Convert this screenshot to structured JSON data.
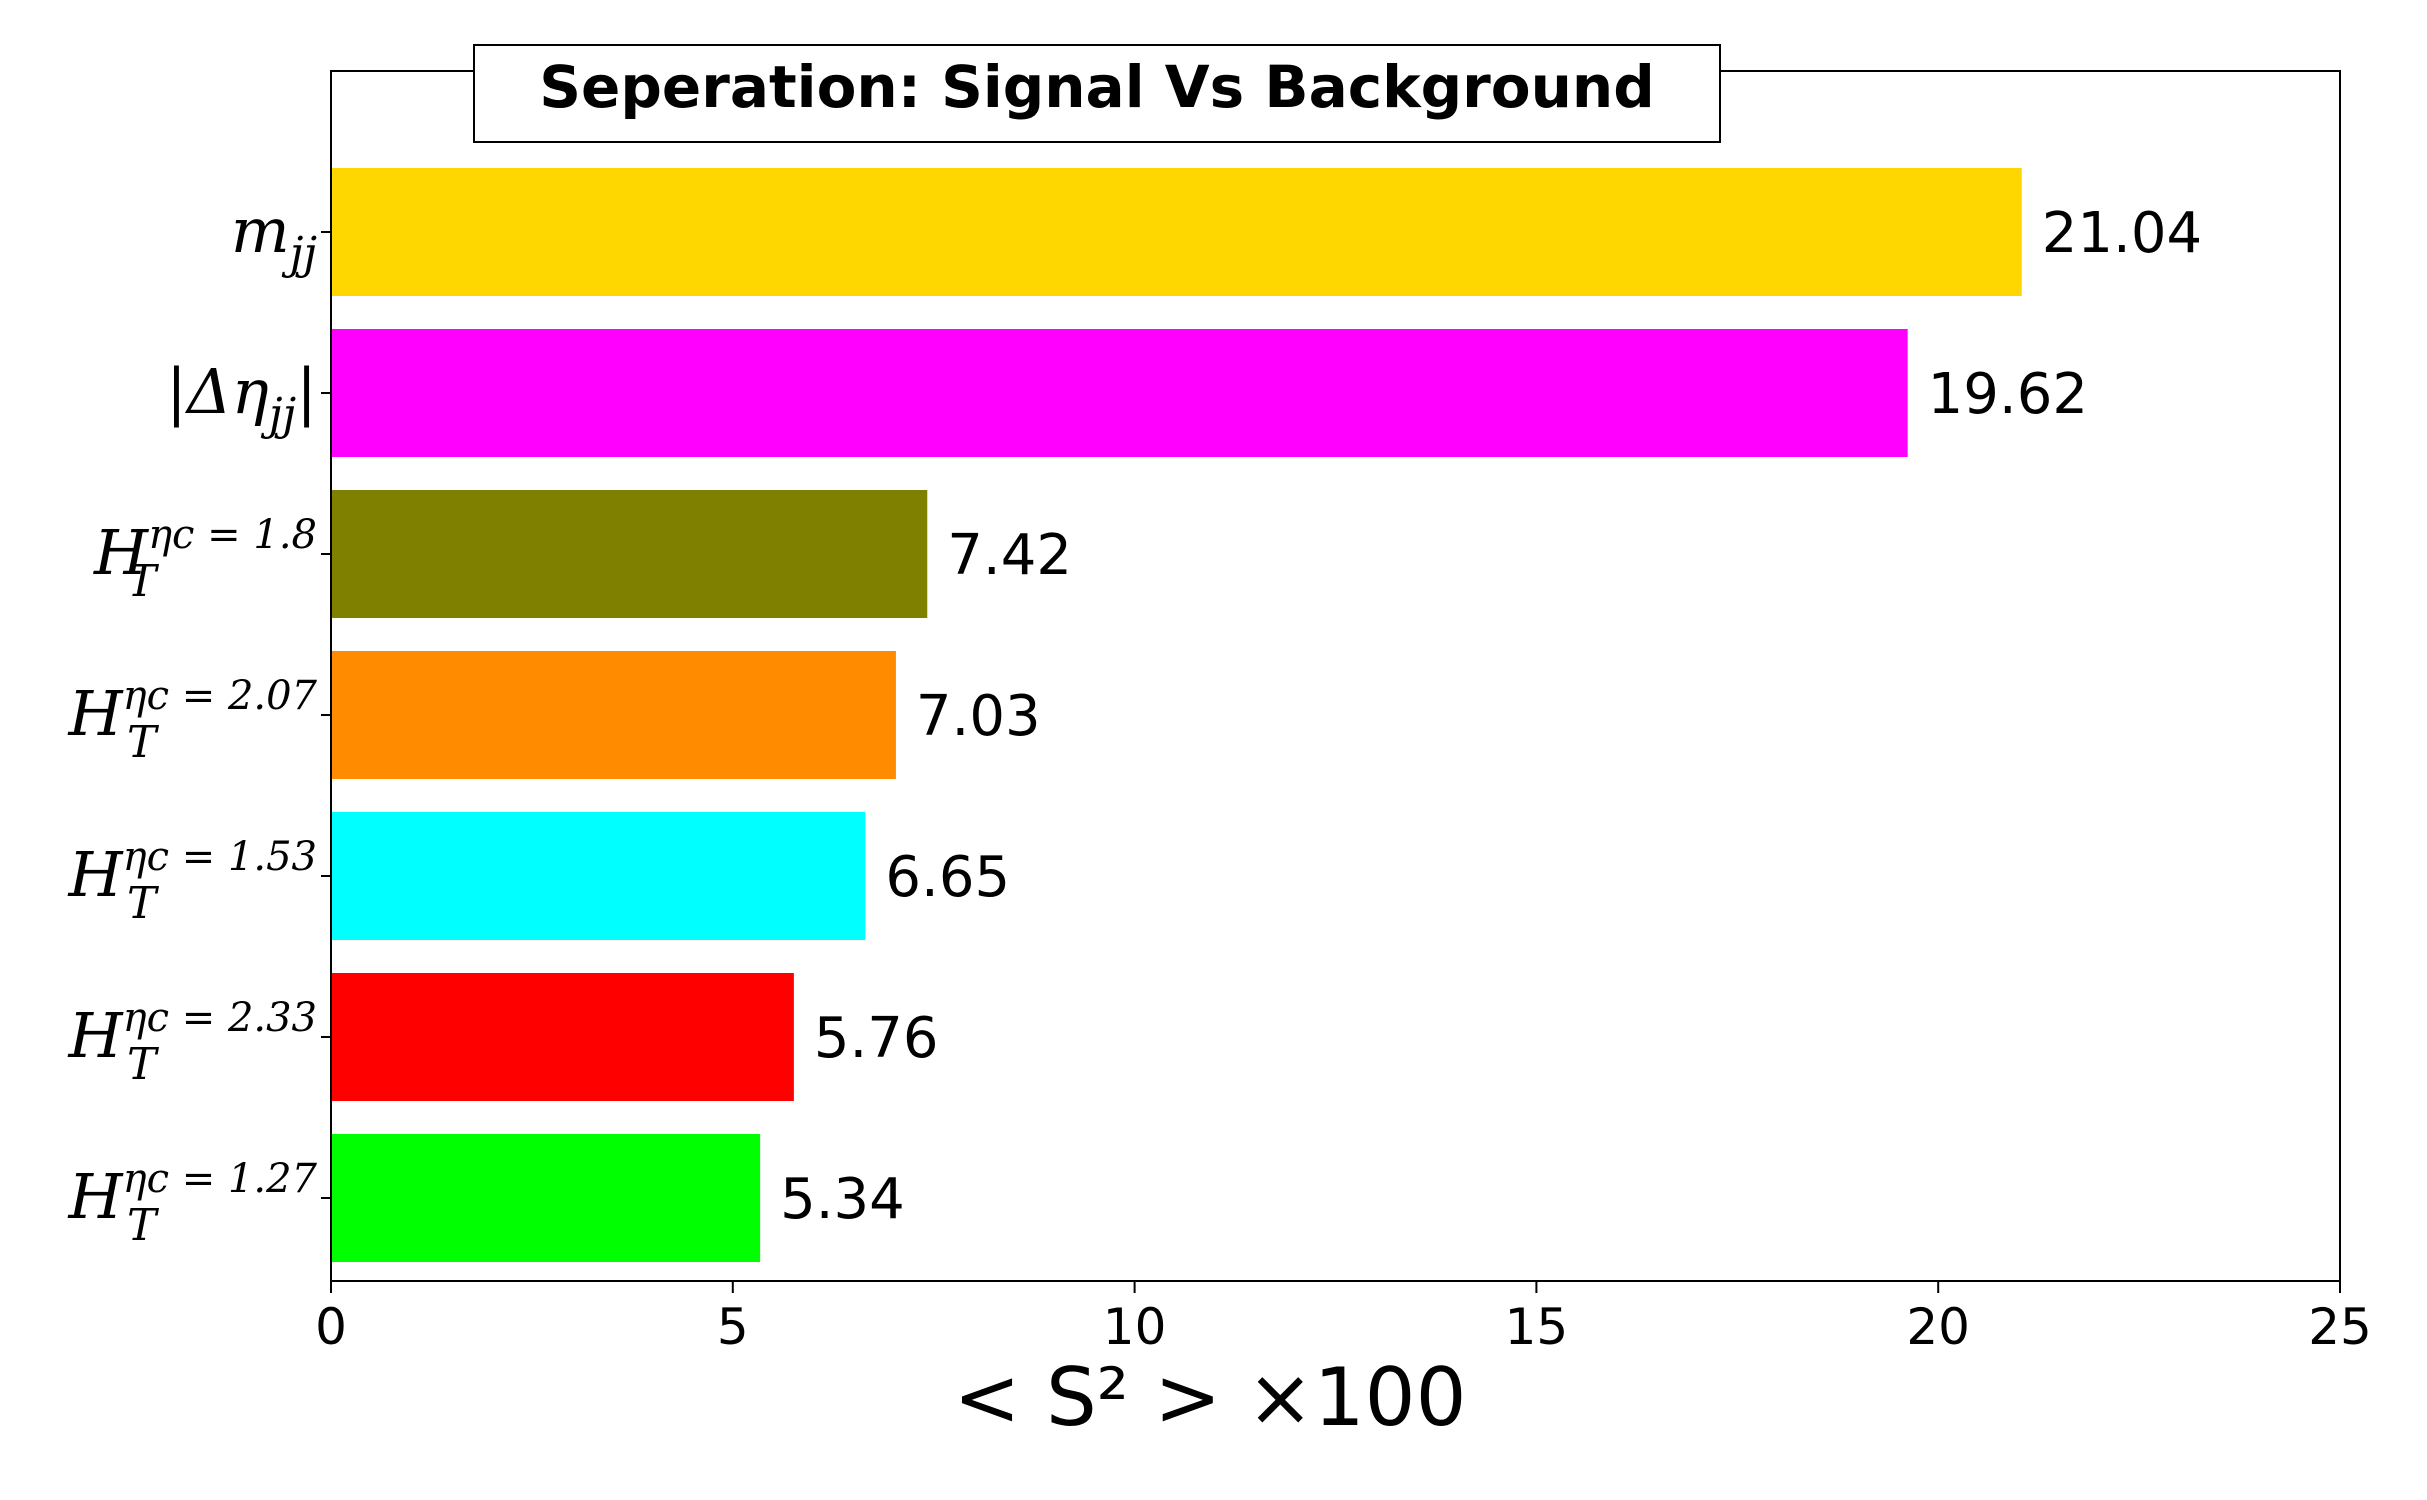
{
  "chart_data": {
    "type": "bar",
    "orientation": "horizontal",
    "title": "Seperation: Signal Vs Background",
    "xlabel": "< S² > ×100",
    "ylabel": "",
    "xlim": [
      0,
      25
    ],
    "xticks": [
      "0",
      "5",
      "10",
      "15",
      "20",
      "25"
    ],
    "grid": false,
    "categories": [
      {
        "base": "m",
        "sub": "jj",
        "sup": "",
        "pre": "",
        "post": ""
      },
      {
        "base": "Δη",
        "sub": "jj",
        "sup": "",
        "pre": "|",
        "post": "|"
      },
      {
        "base": "H",
        "sub": "T",
        "sup": "ηc = 1.8",
        "pre": "",
        "post": ""
      },
      {
        "base": "H",
        "sub": "T",
        "sup": "ηc = 2.07",
        "pre": "",
        "post": ""
      },
      {
        "base": "H",
        "sub": "T",
        "sup": "ηc = 1.53",
        "pre": "",
        "post": ""
      },
      {
        "base": "H",
        "sub": "T",
        "sup": "ηc = 2.33",
        "pre": "",
        "post": ""
      },
      {
        "base": "H",
        "sub": "T",
        "sup": "ηc = 1.27",
        "pre": "",
        "post": ""
      }
    ],
    "values": [
      21.04,
      19.62,
      7.42,
      7.03,
      6.65,
      5.76,
      5.34
    ],
    "value_labels": [
      "21.04",
      "19.62",
      "7.42",
      "7.03",
      "6.65",
      "5.76",
      "5.34"
    ],
    "colors": [
      "#ffd700",
      "#ff00ff",
      "#808000",
      "#ff8c00",
      "#00ffff",
      "#ff0000",
      "#00ff00"
    ]
  }
}
